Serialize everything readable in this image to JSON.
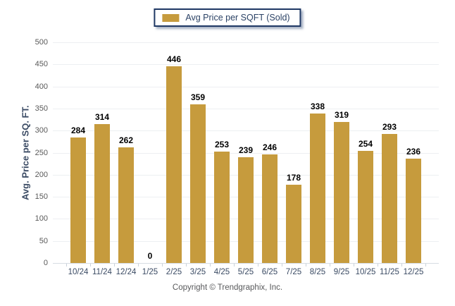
{
  "legend": {
    "label": "Avg Price per SQFT (Sold)"
  },
  "footer": {
    "copyright": "Copyright © Trendgraphix, Inc."
  },
  "chart_data": {
    "type": "bar",
    "title": "",
    "series_name": "Avg Price per SQFT (Sold)",
    "categories": [
      "10/24",
      "11/24",
      "12/24",
      "1/25",
      "2/25",
      "3/25",
      "4/25",
      "5/25",
      "6/25",
      "7/25",
      "8/25",
      "9/25",
      "10/25",
      "11/25",
      "12/25"
    ],
    "values": [
      284,
      314,
      262,
      0,
      446,
      359,
      253,
      239,
      246,
      178,
      338,
      319,
      254,
      293,
      236
    ],
    "xlabel": "",
    "ylabel": "Avg. Price per SQ. FT.",
    "ylim": [
      0,
      500
    ],
    "ytick_step": 50,
    "grid": true,
    "value_labels": true,
    "legend_position": "top-center",
    "colors": {
      "bar": "#C69B3D",
      "grid": "#EDEFF2",
      "baseline": "#D7DCE3",
      "tick_mark": "#C9D1DB",
      "y_tick_label": "#595959",
      "x_tick_label": "#3A4A63",
      "value_label": "#000000",
      "axis_title": "#3A4A63",
      "legend_border": "#1F3864",
      "legend_text": "#2B4265",
      "copyright": "#58595B",
      "background": "#FFFFFF"
    }
  }
}
